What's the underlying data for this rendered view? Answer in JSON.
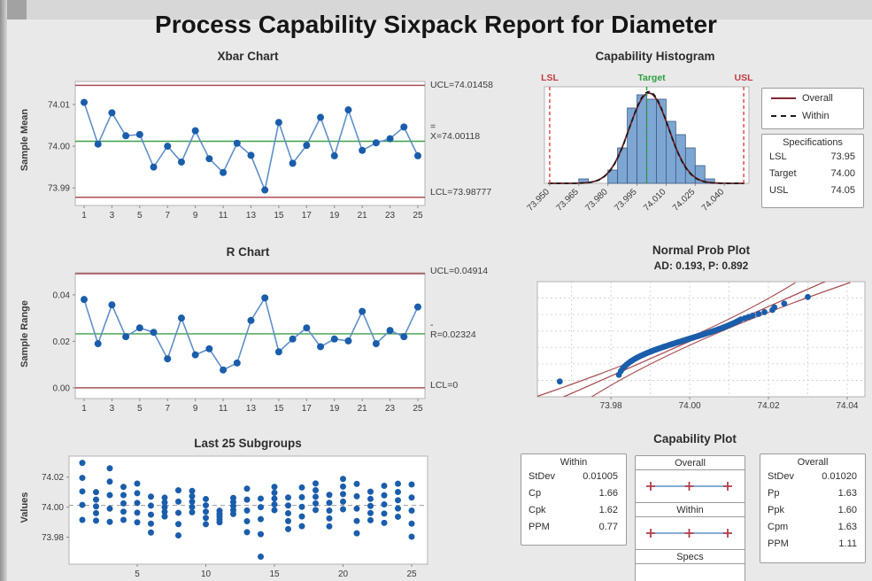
{
  "report": {
    "title": "Process Capability Sixpack Report for Diameter"
  },
  "colors": {
    "background": "#e9e9e9",
    "plot_bg": "#ffffff",
    "plot_border": "#b3b3b3",
    "point_blue": "#1a5dab",
    "line_blue": "#5f8fc9",
    "limit_red": "#a94f55",
    "center_green": "#3da048",
    "spec_red": "#e44b50",
    "target_green": "#2f9e42",
    "bar_fill": "#7ea6d2",
    "bar_stroke": "#3a5a85",
    "overall_curve": "#6e1f27",
    "within_curve": "#1a1a1a",
    "grid": "#cccccc",
    "mean_dash": "#9a9a9a",
    "text": "#3a3a3a"
  },
  "chart_data": [
    {
      "type": "line",
      "panel": "xbar",
      "title": "Xbar Chart",
      "ylabel": "Sample Mean",
      "x": [
        1,
        2,
        3,
        4,
        5,
        6,
        7,
        8,
        9,
        10,
        11,
        12,
        13,
        14,
        15,
        16,
        17,
        18,
        19,
        20,
        21,
        22,
        23,
        24,
        25
      ],
      "values": [
        74.0105,
        74.0005,
        74.008,
        74.0025,
        74.0028,
        73.995,
        74.0,
        73.9962,
        74.0037,
        73.997,
        73.9937,
        74.0007,
        73.9978,
        73.9895,
        74.0057,
        73.9959,
        74.0002,
        74.0069,
        73.9977,
        74.0087,
        73.999,
        74.0008,
        74.0018,
        74.0046,
        73.9977
      ],
      "ucl": 74.01458,
      "center": 74.00118,
      "lcl": 73.98777,
      "ucl_label": "UCL=74.01458",
      "center_label_top": "=",
      "center_label": "X=74.00118",
      "lcl_label": "LCL=73.98777",
      "yticks": [
        73.99,
        74.0,
        74.01
      ],
      "ytick_labels": [
        "73.99",
        "74.00",
        "74.01"
      ],
      "xticks": [
        1,
        3,
        5,
        7,
        9,
        11,
        13,
        15,
        17,
        19,
        21,
        23,
        25
      ],
      "ylim": [
        73.9858,
        74.0155
      ]
    },
    {
      "type": "bar",
      "panel": "histogram",
      "title": "Capability Histogram",
      "bin_start": 73.965,
      "bin_width": 0.005,
      "counts": [
        1,
        0,
        0,
        3,
        8,
        17,
        20,
        19,
        19,
        14,
        11,
        8,
        4,
        1
      ],
      "xticks": [
        73.95,
        73.965,
        73.98,
        73.995,
        74.01,
        74.025,
        74.04
      ],
      "xtick_labels": [
        "73.950",
        "73.965",
        "73.980",
        "73.995",
        "74.010",
        "74.025",
        "74.040"
      ],
      "xlim": [
        73.9473,
        74.0527
      ],
      "specs": {
        "lsl": 73.95,
        "target": 74.0,
        "usl": 74.05,
        "lsl_label": "LSL",
        "target_label": "Target",
        "usl_label": "USL"
      },
      "curves": {
        "overall": {
          "mean": 74.00118,
          "stdev": 0.0102,
          "label": "Overall"
        },
        "within": {
          "mean": 74.00118,
          "stdev": 0.01005,
          "label": "Within"
        }
      },
      "legend": {
        "overall": "Overall",
        "within": "Within"
      },
      "specifications_box": {
        "header": "Specifications",
        "rows": [
          {
            "label": "LSL",
            "value": "73.95"
          },
          {
            "label": "Target",
            "value": "74.00"
          },
          {
            "label": "USL",
            "value": "74.05"
          }
        ]
      }
    },
    {
      "type": "line",
      "panel": "rchart",
      "title": "R Chart",
      "ylabel": "Sample Range",
      "x": [
        1,
        2,
        3,
        4,
        5,
        6,
        7,
        8,
        9,
        10,
        11,
        12,
        13,
        14,
        15,
        16,
        17,
        18,
        19,
        20,
        21,
        22,
        23,
        24,
        25
      ],
      "values": [
        0.038,
        0.019,
        0.0357,
        0.022,
        0.0258,
        0.0239,
        0.0125,
        0.03,
        0.0142,
        0.0168,
        0.0077,
        0.0107,
        0.029,
        0.0387,
        0.0155,
        0.021,
        0.0258,
        0.0177,
        0.021,
        0.0202,
        0.0329,
        0.019,
        0.0247,
        0.022,
        0.0348
      ],
      "ucl": 0.04914,
      "center": 0.02324,
      "lcl": 0,
      "ucl_label": "UCL=0.04914",
      "center_label_top": "-",
      "center_label": "R=0.02324",
      "lcl_label": "LCL=0",
      "yticks": [
        0.0,
        0.02,
        0.04
      ],
      "ytick_labels": [
        "0.00",
        "0.02",
        "0.04"
      ],
      "xticks": [
        1,
        3,
        5,
        7,
        9,
        11,
        13,
        15,
        17,
        19,
        21,
        23,
        25
      ],
      "ylim": [
        -0.0046,
        0.0495
      ]
    },
    {
      "type": "scatter",
      "panel": "probplot",
      "title": "Normal Prob Plot",
      "subtitle": "AD: 0.193, P: 0.892",
      "values": [
        73.967,
        73.982,
        73.9825,
        73.983,
        73.9835,
        73.984,
        73.9845,
        73.985,
        73.9855,
        73.986,
        73.9865,
        73.987,
        73.9875,
        73.988,
        73.9885,
        73.989,
        73.9895,
        73.99,
        73.9905,
        73.991,
        73.9915,
        73.992,
        73.9925,
        73.993,
        73.9935,
        73.994,
        73.9945,
        73.995,
        73.9955,
        73.996,
        73.9965,
        73.997,
        73.9975,
        73.998,
        73.9985,
        73.999,
        73.9995,
        74.0,
        74.0005,
        74.001,
        74.0015,
        74.002,
        74.0025,
        74.003,
        74.0035,
        74.004,
        74.0045,
        74.005,
        74.0055,
        74.006,
        74.0065,
        74.007,
        74.0075,
        74.008,
        74.0085,
        74.009,
        74.0095,
        74.01,
        74.0105,
        74.011,
        74.0115,
        74.012,
        74.0125,
        74.013,
        74.014,
        74.015,
        74.016,
        74.0175,
        74.019,
        74.021,
        74.0215,
        74.024,
        74.03
      ],
      "fit": {
        "mean": 74.00118,
        "stdev": 0.0102
      },
      "xticks": [
        73.98,
        74.0,
        74.02,
        74.04
      ],
      "xtick_labels": [
        "73.98",
        "74.00",
        "74.02",
        "74.04"
      ],
      "xlim": [
        73.9613,
        74.0445
      ]
    },
    {
      "type": "scatter",
      "panel": "subgroups",
      "title": "Last 25 Subgroups",
      "ylabel": "Values",
      "mean_line": 74.00118,
      "yticks": [
        73.98,
        74.0,
        74.02
      ],
      "ytick_labels": [
        "73.98",
        "74.00",
        "74.02"
      ],
      "xticks": [
        5,
        10,
        15,
        20,
        25
      ],
      "ylim": [
        73.962,
        74.034
      ],
      "groups": [
        [
          73.9915,
          74.0015,
          74.0105,
          74.0195,
          74.0295
        ],
        [
          73.991,
          73.996,
          74.0005,
          74.005,
          74.01
        ],
        [
          73.9902,
          73.999,
          74.008,
          74.017,
          74.0259
        ],
        [
          73.9915,
          73.997,
          74.0025,
          74.008,
          74.0135
        ],
        [
          73.9899,
          73.9963,
          74.0028,
          74.0093,
          74.0157
        ],
        [
          73.9831,
          73.989,
          73.995,
          74.001,
          74.007
        ],
        [
          73.9938,
          73.9969,
          74.0,
          74.0031,
          74.0063
        ],
        [
          73.9812,
          73.9887,
          73.9962,
          74.0037,
          74.0112
        ],
        [
          73.9966,
          74.0001,
          74.0037,
          74.0073,
          74.0108
        ],
        [
          73.9886,
          73.9928,
          73.997,
          74.0012,
          74.0054
        ],
        [
          73.9899,
          73.9918,
          73.9937,
          73.9956,
          73.9976
        ],
        [
          73.9954,
          73.998,
          74.0007,
          74.0034,
          74.0061
        ],
        [
          73.9833,
          73.9906,
          73.9978,
          74.005,
          74.0123
        ],
        [
          73.967,
          73.982,
          73.992,
          74.0,
          74.0057
        ],
        [
          73.998,
          74.0018,
          74.0057,
          74.0096,
          74.0135
        ],
        [
          73.9854,
          73.9907,
          73.9959,
          74.0011,
          74.0064
        ],
        [
          73.9873,
          73.9938,
          74.0002,
          74.0066,
          74.0131
        ],
        [
          73.9981,
          74.0025,
          74.0069,
          74.0113,
          74.0158
        ],
        [
          73.9872,
          73.9925,
          73.9977,
          74.0029,
          74.0082
        ],
        [
          73.9986,
          74.0037,
          74.0087,
          74.0137,
          74.0188
        ],
        [
          73.9826,
          73.9908,
          73.999,
          74.0072,
          74.0155
        ],
        [
          73.9913,
          73.9961,
          74.0008,
          74.0055,
          74.0103
        ],
        [
          73.9895,
          73.9957,
          74.0018,
          74.0079,
          74.0142
        ],
        [
          73.9936,
          73.9991,
          74.0046,
          74.0101,
          74.0156
        ],
        [
          73.9803,
          73.989,
          73.9977,
          74.0064,
          74.0151
        ]
      ]
    },
    {
      "type": "table",
      "panel": "capability",
      "title": "Capability Plot",
      "within_box": {
        "header": "Within",
        "rows": [
          {
            "label": "StDev",
            "value": "0.01005"
          },
          {
            "label": "Cp",
            "value": "1.66"
          },
          {
            "label": "Cpk",
            "value": "1.62"
          },
          {
            "label": "PPM",
            "value": "0.77"
          }
        ]
      },
      "overall_box": {
        "header": "Overall",
        "rows": [
          {
            "label": "StDev",
            "value": "0.01020"
          },
          {
            "label": "Pp",
            "value": "1.63"
          },
          {
            "label": "Ppk",
            "value": "1.60"
          },
          {
            "label": "Cpm",
            "value": "1.63"
          },
          {
            "label": "PPM",
            "value": "1.11"
          }
        ]
      },
      "interval_sections": {
        "overall": "Overall",
        "within": "Within",
        "specs": "Specs"
      }
    }
  ]
}
